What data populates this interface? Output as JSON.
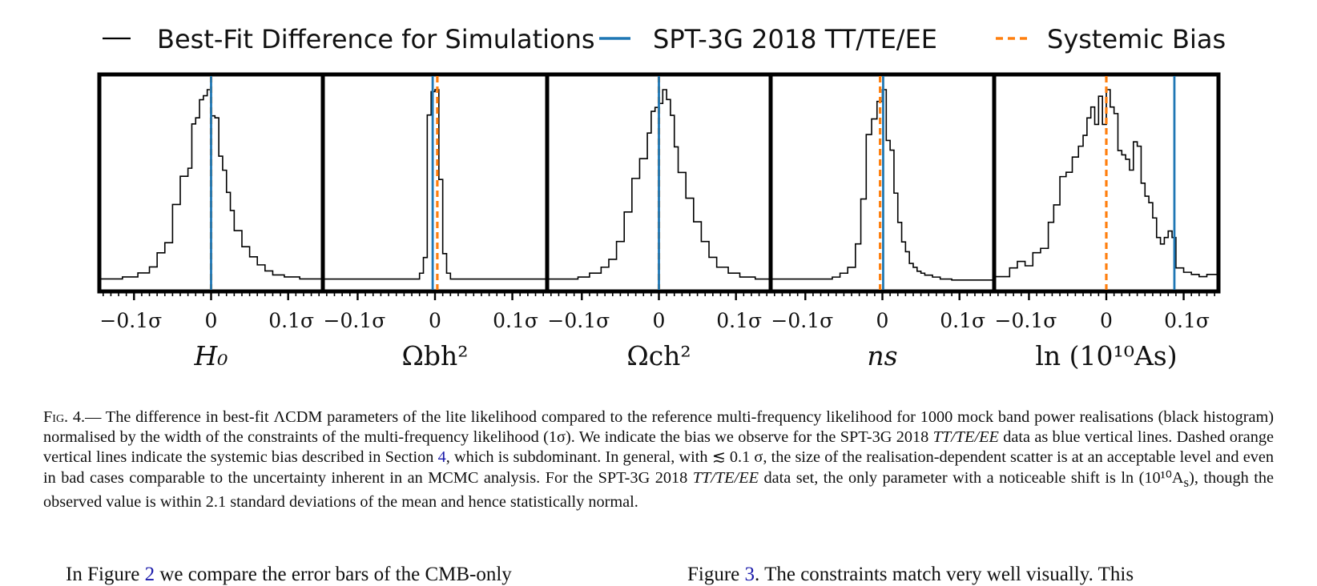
{
  "figure": {
    "legend": {
      "histogram": "Best-Fit Difference for Simulations",
      "spt": "SPT-3G 2018 TT/TE/EE",
      "bias": "Systemic Bias"
    },
    "colors": {
      "histogram": "#000000",
      "spt": "#1f77b4",
      "bias": "#ff7f0e"
    }
  },
  "chart_data": [
    {
      "type": "histogram",
      "xlabel": "H₀",
      "tick_labels": [
        "−0.1σ",
        "0",
        "0.1σ"
      ],
      "xlim": [
        -0.145,
        0.145
      ],
      "spt_line": 0.0,
      "bias_line": 0.0,
      "bins": [
        -0.145,
        -0.115,
        -0.095,
        -0.08,
        -0.07,
        -0.06,
        -0.05,
        -0.04,
        -0.03,
        -0.025,
        -0.02,
        -0.015,
        -0.01,
        -0.005,
        0.0,
        0.005,
        0.01,
        0.015,
        0.02,
        0.025,
        0.03,
        0.04,
        0.05,
        0.06,
        0.07,
        0.08,
        0.095,
        0.115,
        0.145
      ],
      "counts": [
        0.01,
        0.02,
        0.04,
        0.07,
        0.14,
        0.19,
        0.38,
        0.52,
        0.56,
        0.78,
        0.81,
        0.9,
        0.92,
        0.95,
        0.82,
        0.81,
        0.62,
        0.55,
        0.44,
        0.35,
        0.25,
        0.17,
        0.12,
        0.08,
        0.05,
        0.03,
        0.02,
        0.01
      ]
    },
    {
      "type": "histogram",
      "xlabel": "Ωbh²",
      "tick_labels": [
        "−0.1σ",
        "0",
        "0.1σ"
      ],
      "xlim": [
        -0.145,
        0.145
      ],
      "spt_line": -0.003,
      "bias_line": 0.003,
      "bins": [
        -0.145,
        -0.02,
        -0.015,
        -0.01,
        -0.005,
        0.0,
        0.005,
        0.01,
        0.015,
        0.02,
        0.145
      ],
      "counts": [
        0.01,
        0.04,
        0.12,
        0.85,
        0.97,
        0.98,
        0.52,
        0.14,
        0.04,
        0.01
      ]
    },
    {
      "type": "histogram",
      "xlabel": "Ωch²",
      "tick_labels": [
        "−0.1σ",
        "0",
        "0.1σ"
      ],
      "xlim": [
        -0.145,
        0.145
      ],
      "spt_line": 0.0,
      "bias_line": 0.0,
      "bins": [
        -0.145,
        -0.105,
        -0.09,
        -0.075,
        -0.065,
        -0.055,
        -0.045,
        -0.035,
        -0.025,
        -0.015,
        -0.01,
        -0.005,
        0.0,
        0.005,
        0.01,
        0.015,
        0.02,
        0.025,
        0.035,
        0.045,
        0.055,
        0.065,
        0.075,
        0.09,
        0.105,
        0.125,
        0.145
      ],
      "counts": [
        0.01,
        0.02,
        0.04,
        0.07,
        0.11,
        0.2,
        0.35,
        0.52,
        0.62,
        0.75,
        0.86,
        0.88,
        0.9,
        0.97,
        0.92,
        0.84,
        0.68,
        0.55,
        0.42,
        0.3,
        0.2,
        0.12,
        0.07,
        0.04,
        0.02,
        0.01
      ]
    },
    {
      "type": "histogram",
      "xlabel": "ns",
      "tick_labels": [
        "−0.1σ",
        "0",
        "0.1σ"
      ],
      "xlim": [
        -0.145,
        0.145
      ],
      "spt_line": 0.001,
      "bias_line": -0.003,
      "bins": [
        -0.145,
        -0.065,
        -0.055,
        -0.045,
        -0.035,
        -0.028,
        -0.021,
        -0.014,
        -0.007,
        0.0,
        0.005,
        0.01,
        0.015,
        0.02,
        0.025,
        0.03,
        0.035,
        0.04,
        0.045,
        0.05,
        0.055,
        0.065,
        0.075,
        0.09,
        0.145
      ],
      "counts": [
        0.01,
        0.02,
        0.04,
        0.07,
        0.19,
        0.42,
        0.75,
        0.83,
        0.92,
        0.98,
        0.72,
        0.67,
        0.45,
        0.3,
        0.2,
        0.15,
        0.09,
        0.07,
        0.05,
        0.04,
        0.03,
        0.02,
        0.01,
        0.005
      ]
    },
    {
      "type": "histogram",
      "xlabel": "ln (10¹⁰As)",
      "tick_labels": [
        "−0.1σ",
        "0",
        "0.1σ"
      ],
      "xlim": [
        -0.145,
        0.145
      ],
      "spt_line": 0.088,
      "bias_line": 0.0,
      "bins": [
        -0.145,
        -0.125,
        -0.115,
        -0.105,
        -0.095,
        -0.085,
        -0.075,
        -0.068,
        -0.06,
        -0.052,
        -0.044,
        -0.036,
        -0.03,
        -0.025,
        -0.02,
        -0.015,
        -0.01,
        -0.005,
        0.0,
        0.005,
        0.01,
        0.015,
        0.02,
        0.025,
        0.03,
        0.035,
        0.04,
        0.045,
        0.05,
        0.055,
        0.06,
        0.065,
        0.07,
        0.075,
        0.08,
        0.085,
        0.09,
        0.1,
        0.11,
        0.12,
        0.13,
        0.145
      ],
      "counts": [
        0.02,
        0.06,
        0.09,
        0.07,
        0.13,
        0.15,
        0.27,
        0.35,
        0.48,
        0.5,
        0.57,
        0.62,
        0.67,
        0.75,
        0.8,
        0.72,
        0.85,
        0.72,
        0.88,
        0.8,
        0.77,
        0.6,
        0.58,
        0.56,
        0.51,
        0.64,
        0.62,
        0.45,
        0.39,
        0.36,
        0.29,
        0.2,
        0.17,
        0.2,
        0.23,
        0.2,
        0.06,
        0.04,
        0.03,
        0.02,
        0.03
      ]
    }
  ],
  "caption": {
    "figtag": "Fig. 4.",
    "p1": "— The difference in best-fit ΛCDM parameters of the lite likelihood compared to the reference multi-frequency likelihood for 1000 mock band power realisations (black histogram) normalised by the width of the constraints of the multi-frequency likelihood (1σ). We indicate the bias we observe for the SPT-3G 2018 ",
    "p1_italic": "TT/TE/EE",
    "p2": " data as blue vertical lines. Dashed orange vertical lines indicate the systemic bias described in Section ",
    "ref": "4",
    "p3": ", which is subdominant. In general, with ≲ 0.1 σ, the size of the realisation-dependent scatter is at an acceptable level and even in bad cases comparable to the uncertainty inherent in an MCMC analysis. For the SPT-3G 2018 ",
    "p3_italic": "TT/TE/EE",
    "p4": " data set, the only parameter with a noticeable shift is ln (10¹⁰A",
    "p4_sub": "s",
    "p5": "), though the observed value is within 2.1 standard deviations of the mean and hence statistically normal."
  },
  "body": {
    "left_a": "In Figure ",
    "left_ref": "2",
    "left_b": " we compare the error bars of the CMB-only",
    "right_a": "Figure ",
    "right_ref": "3",
    "right_b": ". The constraints match very well visually. This"
  }
}
